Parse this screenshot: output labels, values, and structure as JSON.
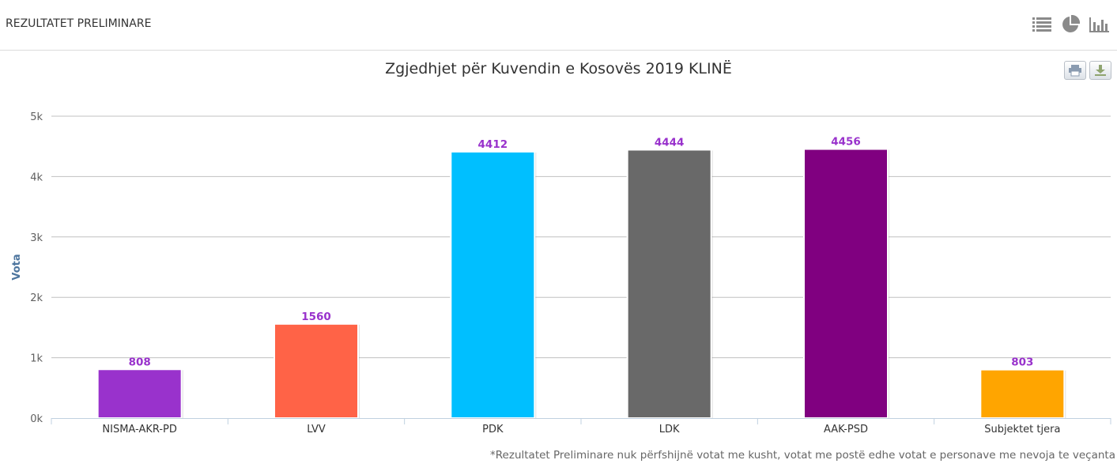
{
  "header": {
    "title": "REZULTATET PRELIMINARE",
    "icons": [
      "list-icon",
      "pie-chart-icon",
      "bar-chart-icon"
    ]
  },
  "colors": {
    "label": "#9932CC",
    "axis_title": "#4d759e",
    "grid": "#c0c0c0"
  },
  "chart_data": {
    "type": "bar",
    "title": "Zgjedhjet për Kuvendin e Kosovës 2019 KLINË",
    "xlabel": "",
    "ylabel": "Vota",
    "categories": [
      "NISMA-AKR-PD",
      "LVV",
      "PDK",
      "LDK",
      "AAK-PSD",
      "Subjektet tjera"
    ],
    "values": [
      808,
      1560,
      4412,
      4444,
      4456,
      803
    ],
    "bar_colors": [
      "#9932CC",
      "#FF6347",
      "#00BFFF",
      "#696969",
      "#800080",
      "#FFA500"
    ],
    "data_labels": [
      "808",
      "1560",
      "4412",
      "4444",
      "4456",
      "803"
    ],
    "ylim": [
      0,
      5000
    ],
    "yticks": [
      0,
      1000,
      2000,
      3000,
      4000,
      5000
    ],
    "ytick_labels": [
      "0k",
      "1k",
      "2k",
      "3k",
      "4k",
      "5k"
    ],
    "grid": true,
    "legend": false
  },
  "footnote": "*Rezultatet Preliminare nuk përfshijnë votat me kusht, votat me postë edhe votat e personave me nevoja te veçanta"
}
